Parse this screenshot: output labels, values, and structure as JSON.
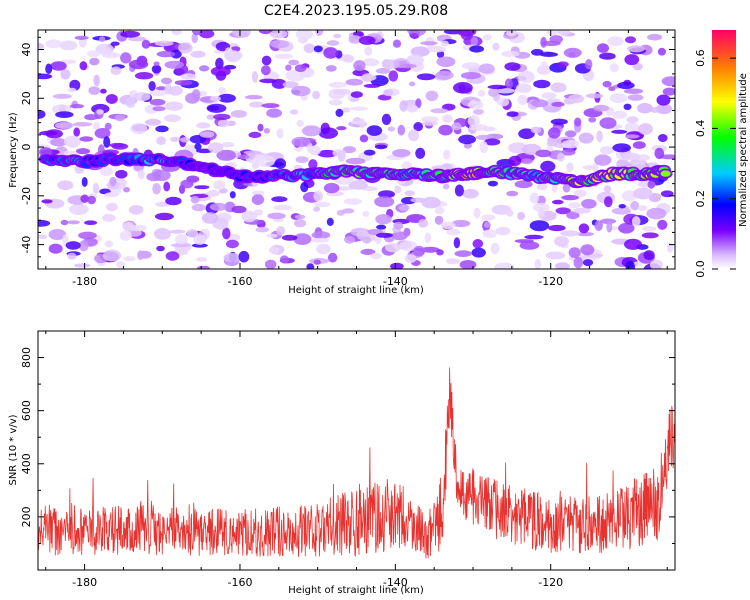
{
  "chart_data": [
    {
      "type": "heatmap",
      "title": "C2E4.2023.195.05.29.R08",
      "xlabel": "Height of straight line (km)",
      "ylabel": "Frequency (Hz)",
      "xlim": [
        -186,
        -104
      ],
      "ylim": [
        -50,
        48
      ],
      "x_ticks": [
        "-180",
        "-160",
        "-140",
        "-120"
      ],
      "y_ticks": [
        "-40",
        "-20",
        "0",
        "20",
        "40"
      ],
      "colorbar": {
        "label": "Normalized spectral amplitude",
        "range": [
          0,
          0.68
        ],
        "ticks": [
          "0.0",
          "0.2",
          "0.4",
          "0.6"
        ]
      },
      "ridge": {
        "description": "strong band of amplitude near -5 to -15 Hz",
        "points": [
          {
            "x": -185,
            "y": -5,
            "amp": 0.22
          },
          {
            "x": -180,
            "y": -6,
            "amp": 0.25
          },
          {
            "x": -176,
            "y": -5,
            "amp": 0.22
          },
          {
            "x": -170,
            "y": -5,
            "amp": 0.28
          },
          {
            "x": -165,
            "y": -8,
            "amp": 0.12
          },
          {
            "x": -160,
            "y": -12,
            "amp": 0.18
          },
          {
            "x": -155,
            "y": -12,
            "amp": 0.22
          },
          {
            "x": -150,
            "y": -11,
            "amp": 0.3
          },
          {
            "x": -146,
            "y": -10,
            "amp": 0.45
          },
          {
            "x": -142,
            "y": -11,
            "amp": 0.35
          },
          {
            "x": -138,
            "y": -11,
            "amp": 0.32
          },
          {
            "x": -134,
            "y": -12,
            "amp": 0.4
          },
          {
            "x": -131,
            "y": -11,
            "amp": 0.6
          },
          {
            "x": -128,
            "y": -10,
            "amp": 0.48
          },
          {
            "x": -124,
            "y": -11,
            "amp": 0.3
          },
          {
            "x": -120,
            "y": -13,
            "amp": 0.35
          },
          {
            "x": -116,
            "y": -14,
            "amp": 0.45
          },
          {
            "x": -112,
            "y": -11,
            "amp": 0.48
          },
          {
            "x": -108,
            "y": -11,
            "amp": 0.45
          },
          {
            "x": -105,
            "y": -10,
            "amp": 0.4
          }
        ]
      }
    },
    {
      "type": "line",
      "xlabel": "Height of straight line (km)",
      "ylabel": "SNR (10 * v/v)",
      "xlim": [
        -186,
        -104
      ],
      "ylim": [
        0,
        900
      ],
      "x_ticks": [
        "-180",
        "-160",
        "-140",
        "-120"
      ],
      "y_ticks": [
        "200",
        "400",
        "600",
        "800"
      ],
      "color": "#e8322f",
      "envelope": [
        {
          "x": -186,
          "base": 150,
          "spread": 160
        },
        {
          "x": -170,
          "base": 150,
          "spread": 160
        },
        {
          "x": -160,
          "base": 140,
          "spread": 150
        },
        {
          "x": -150,
          "base": 150,
          "spread": 170
        },
        {
          "x": -145,
          "base": 190,
          "spread": 230
        },
        {
          "x": -140,
          "base": 210,
          "spread": 230
        },
        {
          "x": -136,
          "base": 130,
          "spread": 150
        },
        {
          "x": -134,
          "base": 200,
          "spread": 250
        },
        {
          "x": -133,
          "base": 650,
          "spread": 230
        },
        {
          "x": -132,
          "base": 320,
          "spread": 170
        },
        {
          "x": -128,
          "base": 230,
          "spread": 200
        },
        {
          "x": -120,
          "base": 170,
          "spread": 180
        },
        {
          "x": -112,
          "base": 180,
          "spread": 200
        },
        {
          "x": -106,
          "base": 250,
          "spread": 260
        },
        {
          "x": -104,
          "base": 560,
          "spread": 250
        }
      ]
    }
  ]
}
